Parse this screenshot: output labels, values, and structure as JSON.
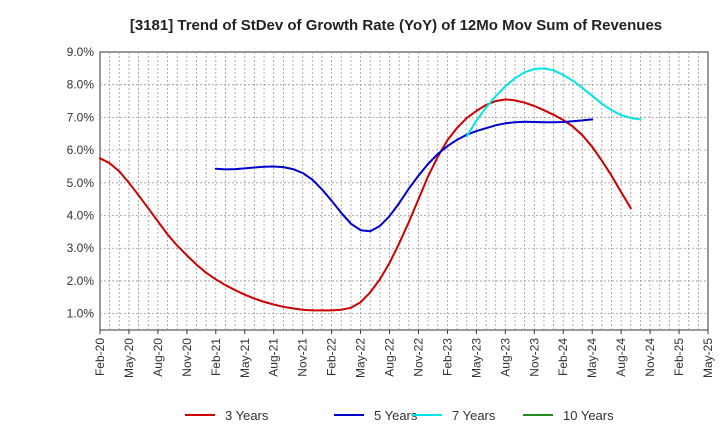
{
  "chart_data": {
    "type": "line",
    "title": "[3181]  Trend of StDev of Growth Rate (YoY) of 12Mo Mov Sum of Revenues",
    "xlabel": "",
    "ylabel": "",
    "ylim": [
      0.5,
      9.0
    ],
    "yticks": [
      1.0,
      2.0,
      3.0,
      4.0,
      5.0,
      6.0,
      7.0,
      8.0,
      9.0
    ],
    "ytick_labels": [
      "1.0%",
      "2.0%",
      "3.0%",
      "4.0%",
      "5.0%",
      "6.0%",
      "7.0%",
      "8.0%",
      "9.0%"
    ],
    "x_categories": [
      "Feb-20",
      "May-20",
      "Aug-20",
      "Nov-20",
      "Feb-21",
      "May-21",
      "Aug-21",
      "Nov-21",
      "Feb-22",
      "May-22",
      "Aug-22",
      "Nov-22",
      "Feb-23",
      "May-23",
      "Aug-23",
      "Nov-23",
      "Feb-24",
      "May-24",
      "Aug-24",
      "Nov-24",
      "Feb-25",
      "May-25"
    ],
    "grid": true,
    "legend_position": "bottom",
    "series": [
      {
        "name": "3 Years",
        "color": "#cc0000",
        "start_index": 0,
        "values": [
          5.75,
          5.6,
          5.35,
          5.0,
          4.62,
          4.22,
          3.82,
          3.42,
          3.08,
          2.78,
          2.5,
          2.25,
          2.05,
          1.87,
          1.72,
          1.58,
          1.46,
          1.36,
          1.28,
          1.21,
          1.16,
          1.12,
          1.1,
          1.1,
          1.1,
          1.12,
          1.18,
          1.35,
          1.65,
          2.05,
          2.55,
          3.15,
          3.8,
          4.5,
          5.2,
          5.8,
          6.3,
          6.68,
          6.98,
          7.2,
          7.38,
          7.5,
          7.55,
          7.52,
          7.45,
          7.35,
          7.22,
          7.08,
          6.92,
          6.72,
          6.45,
          6.1,
          5.68,
          5.22,
          4.72,
          4.22
        ]
      },
      {
        "name": "5 Years",
        "color": "#0000cc",
        "start_index": 12,
        "values": [
          5.43,
          5.41,
          5.42,
          5.44,
          5.47,
          5.49,
          5.5,
          5.48,
          5.42,
          5.3,
          5.1,
          4.8,
          4.45,
          4.08,
          3.75,
          3.55,
          3.52,
          3.68,
          3.98,
          4.38,
          4.82,
          5.22,
          5.58,
          5.88,
          6.12,
          6.32,
          6.47,
          6.58,
          6.67,
          6.76,
          6.82,
          6.85,
          6.87,
          6.86,
          6.85,
          6.85,
          6.86,
          6.88,
          6.91,
          6.94
        ]
      },
      {
        "name": "7 Years",
        "color": "#00e5e5",
        "start_index": 38,
        "values": [
          6.42,
          6.9,
          7.3,
          7.65,
          7.95,
          8.2,
          8.38,
          8.48,
          8.5,
          8.44,
          8.3,
          8.12,
          7.9,
          7.66,
          7.42,
          7.22,
          7.07,
          6.98,
          6.94
        ]
      },
      {
        "name": "10 Years",
        "color": "#228b22",
        "start_index": 0,
        "values": []
      }
    ]
  }
}
